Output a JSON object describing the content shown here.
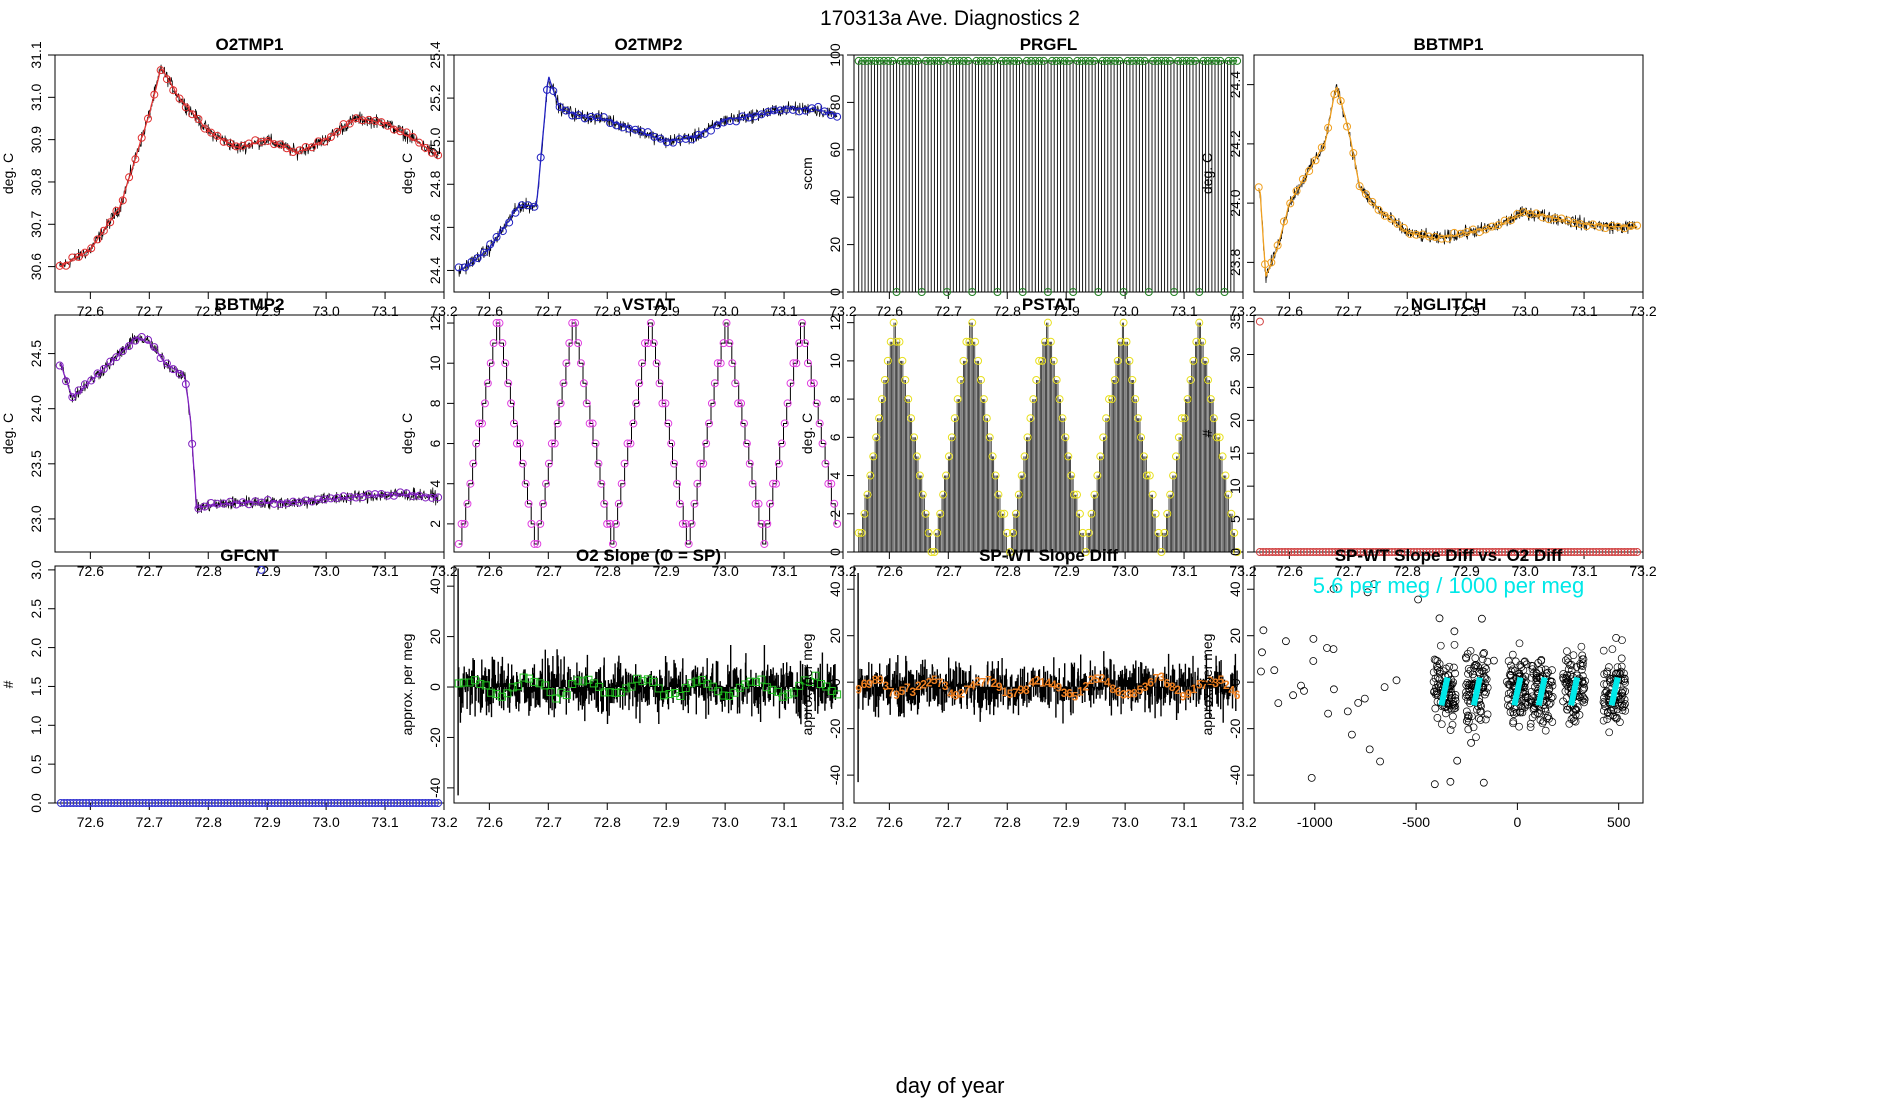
{
  "figure": {
    "title": "170313a   Ave. Diagnostics 2",
    "xlabel": "day of year"
  },
  "chart_data": [
    {
      "type": "line",
      "title": "O2TMP1",
      "ylabel": "deg. C",
      "xlim": [
        72.54,
        73.2
      ],
      "ylim": [
        30.54,
        31.1
      ],
      "xticks": [
        "72.6",
        "72.7",
        "72.8",
        "72.9",
        "73.0",
        "73.1",
        "73.2"
      ],
      "yticks": [
        "30.6",
        "30.7",
        "30.8",
        "30.9",
        "31.0",
        "31.1"
      ],
      "color": "#e03030",
      "marker": "circle",
      "x": [
        72.55,
        72.6,
        72.65,
        72.7,
        72.72,
        72.75,
        72.8,
        72.85,
        72.9,
        72.95,
        73.0,
        73.05,
        73.1,
        73.15,
        73.19
      ],
      "y": [
        30.6,
        30.64,
        30.74,
        30.96,
        31.07,
        31.0,
        30.92,
        30.88,
        30.9,
        30.87,
        30.9,
        30.95,
        30.94,
        30.9,
        30.86
      ]
    },
    {
      "type": "line",
      "title": "O2TMP2",
      "ylabel": "deg. C",
      "xlim": [
        72.54,
        73.2
      ],
      "ylim": [
        24.3,
        25.4
      ],
      "xticks": [
        "72.6",
        "72.7",
        "72.8",
        "72.9",
        "73.0",
        "73.1",
        "73.2"
      ],
      "yticks": [
        "24.4",
        "24.6",
        "24.8",
        "25.0",
        "25.2",
        "25.4"
      ],
      "color": "#2020c0",
      "marker": "circle",
      "x": [
        72.55,
        72.6,
        72.65,
        72.68,
        72.7,
        72.72,
        72.75,
        72.8,
        72.85,
        72.9,
        72.95,
        73.0,
        73.05,
        73.1,
        73.15,
        73.19
      ],
      "y": [
        24.4,
        24.5,
        24.7,
        24.7,
        25.3,
        25.15,
        25.12,
        25.1,
        25.05,
        25.0,
        25.02,
        25.1,
        25.12,
        25.15,
        25.15,
        25.12
      ]
    },
    {
      "type": "line",
      "title": "PRGFL",
      "ylabel": "sccm",
      "xlim": [
        72.54,
        73.2
      ],
      "ylim": [
        0,
        100
      ],
      "xticks": [
        "72.6",
        "72.7",
        "72.8",
        "72.9",
        "73.0",
        "73.1",
        "73.2"
      ],
      "yticks": [
        "0",
        "20",
        "40",
        "60",
        "80",
        "100"
      ],
      "color": "#208020",
      "marker": "circle",
      "pattern": "toggle",
      "high": 97.5,
      "low": 0
    },
    {
      "type": "line",
      "title": "BBTMP1",
      "ylabel": "deg. C",
      "xlim": [
        72.54,
        73.2
      ],
      "ylim": [
        23.7,
        24.5
      ],
      "xticks": [
        "72.6",
        "72.7",
        "72.8",
        "72.9",
        "73.0",
        "73.1",
        "73.2"
      ],
      "yticks": [
        "23.8",
        "24.0",
        "24.2",
        "24.4"
      ],
      "color": "#f0a020",
      "marker": "circle",
      "x": [
        72.55,
        72.56,
        72.58,
        72.6,
        72.63,
        72.66,
        72.68,
        72.7,
        72.72,
        72.75,
        72.8,
        72.85,
        72.9,
        72.95,
        73.0,
        73.05,
        73.1,
        73.15,
        73.19
      ],
      "y": [
        24.05,
        23.75,
        23.85,
        24.0,
        24.1,
        24.2,
        24.4,
        24.25,
        24.05,
        23.98,
        23.9,
        23.88,
        23.9,
        23.92,
        23.97,
        23.95,
        23.93,
        23.92,
        23.92
      ]
    },
    {
      "type": "line",
      "title": "BBTMP2",
      "ylabel": "deg. C",
      "xlim": [
        72.54,
        73.2
      ],
      "ylim": [
        22.7,
        24.85
      ],
      "xticks": [
        "72.6",
        "72.7",
        "72.8",
        "72.9",
        "73.0",
        "73.1",
        "73.2"
      ],
      "yticks": [
        "23.0",
        "23.5",
        "24.0",
        "24.5"
      ],
      "color": "#8020c0",
      "marker": "circle",
      "x": [
        72.55,
        72.57,
        72.6,
        72.65,
        72.68,
        72.7,
        72.73,
        72.76,
        72.77,
        72.78,
        72.8,
        72.85,
        72.9,
        72.95,
        73.0,
        73.05,
        73.1,
        73.15,
        73.19
      ],
      "y": [
        24.4,
        24.1,
        24.25,
        24.5,
        24.65,
        24.6,
        24.4,
        24.3,
        23.9,
        23.1,
        23.12,
        23.15,
        23.15,
        23.15,
        23.18,
        23.2,
        23.22,
        23.22,
        23.2
      ]
    },
    {
      "type": "line",
      "title": "VSTAT",
      "ylabel": "deg. C",
      "xlim": [
        72.54,
        73.2
      ],
      "ylim": [
        0.6,
        12.4
      ],
      "xticks": [
        "72.6",
        "72.7",
        "72.8",
        "72.9",
        "73.0",
        "73.1",
        "73.2"
      ],
      "yticks": [
        "2",
        "4",
        "6",
        "8",
        "10",
        "12"
      ],
      "color": "#e040e0",
      "marker": "circle",
      "pattern": "triangle",
      "period": 0.129,
      "start": 72.55,
      "max": 12,
      "min": 1
    },
    {
      "type": "line",
      "title": "PSTAT",
      "ylabel": "deg. C",
      "xlim": [
        72.54,
        73.2
      ],
      "ylim": [
        0,
        12.4
      ],
      "xticks": [
        "72.6",
        "72.7",
        "72.8",
        "72.9",
        "73.0",
        "73.1",
        "73.2"
      ],
      "yticks": [
        "0",
        "2",
        "4",
        "6",
        "8",
        "10",
        "12"
      ],
      "color": "#e8e020",
      "marker": "circle",
      "pattern": "triangle",
      "period": 0.129,
      "start": 72.545,
      "max": 12,
      "min": 0
    },
    {
      "type": "scatter",
      "title": "NGLITCH",
      "ylabel": "#",
      "xlim": [
        72.54,
        73.2
      ],
      "ylim": [
        0,
        36
      ],
      "xticks": [
        "72.6",
        "72.7",
        "72.8",
        "72.9",
        "73.0",
        "73.1",
        "73.2"
      ],
      "yticks": [
        "0",
        "5",
        "10",
        "15",
        "20",
        "25",
        "30",
        "35"
      ],
      "color": "#d04040",
      "marker": "circle",
      "outlier": [
        72.55,
        35
      ],
      "baseline": 0
    },
    {
      "type": "scatter",
      "title": "GFCNT",
      "ylabel": "#",
      "xlim": [
        72.54,
        73.2
      ],
      "ylim": [
        0,
        3.05
      ],
      "xticks": [
        "72.6",
        "72.7",
        "72.8",
        "72.9",
        "73.0",
        "73.1",
        "73.2"
      ],
      "yticks": [
        "0.0",
        "0.5",
        "1.0",
        "1.5",
        "2.0",
        "2.5",
        "3.0"
      ],
      "color": "#3030d0",
      "marker": "circle",
      "outlier": [
        72.89,
        3
      ],
      "baseline": 0
    },
    {
      "type": "line",
      "title": "O2 Slope (O = SP)",
      "ylabel": "approx. per meg",
      "xlim": [
        72.54,
        73.2
      ],
      "ylim": [
        -46,
        48
      ],
      "xticks": [
        "72.6",
        "72.7",
        "72.8",
        "72.9",
        "73.0",
        "73.1",
        "73.2"
      ],
      "yticks": [
        "-40",
        "-20",
        "0",
        "20",
        "40"
      ],
      "color": "#20c020",
      "marker": "square",
      "mean": 0,
      "spread": 8
    },
    {
      "type": "line",
      "title": "SP-WT Slope Diff",
      "ylabel": "approx. per meg",
      "xlim": [
        72.54,
        73.2
      ],
      "ylim": [
        -52,
        50
      ],
      "xticks": [
        "72.6",
        "72.7",
        "72.8",
        "72.9",
        "73.0",
        "73.1",
        "73.2"
      ],
      "yticks": [
        "-40",
        "-20",
        "0",
        "20",
        "40"
      ],
      "color": "#f08020",
      "marker": "digits",
      "mean": -2,
      "spread": 8
    },
    {
      "type": "scatter",
      "title": "SP-WT Slope Diff vs. O2 Diff",
      "ylabel": "approx. per meg",
      "xlim": [
        -1300,
        620
      ],
      "ylim": [
        -52,
        50
      ],
      "xticks": [
        "-1000",
        "-500",
        "0",
        "500"
      ],
      "yticks": [
        "-40",
        "-20",
        "0",
        "20",
        "40"
      ],
      "color": "#000000",
      "fitcolor": "#00e8e8",
      "annotation": "5.6 per meg / 1000 per meg",
      "clusters": [
        -360,
        -200,
        0,
        120,
        280,
        480
      ]
    }
  ]
}
